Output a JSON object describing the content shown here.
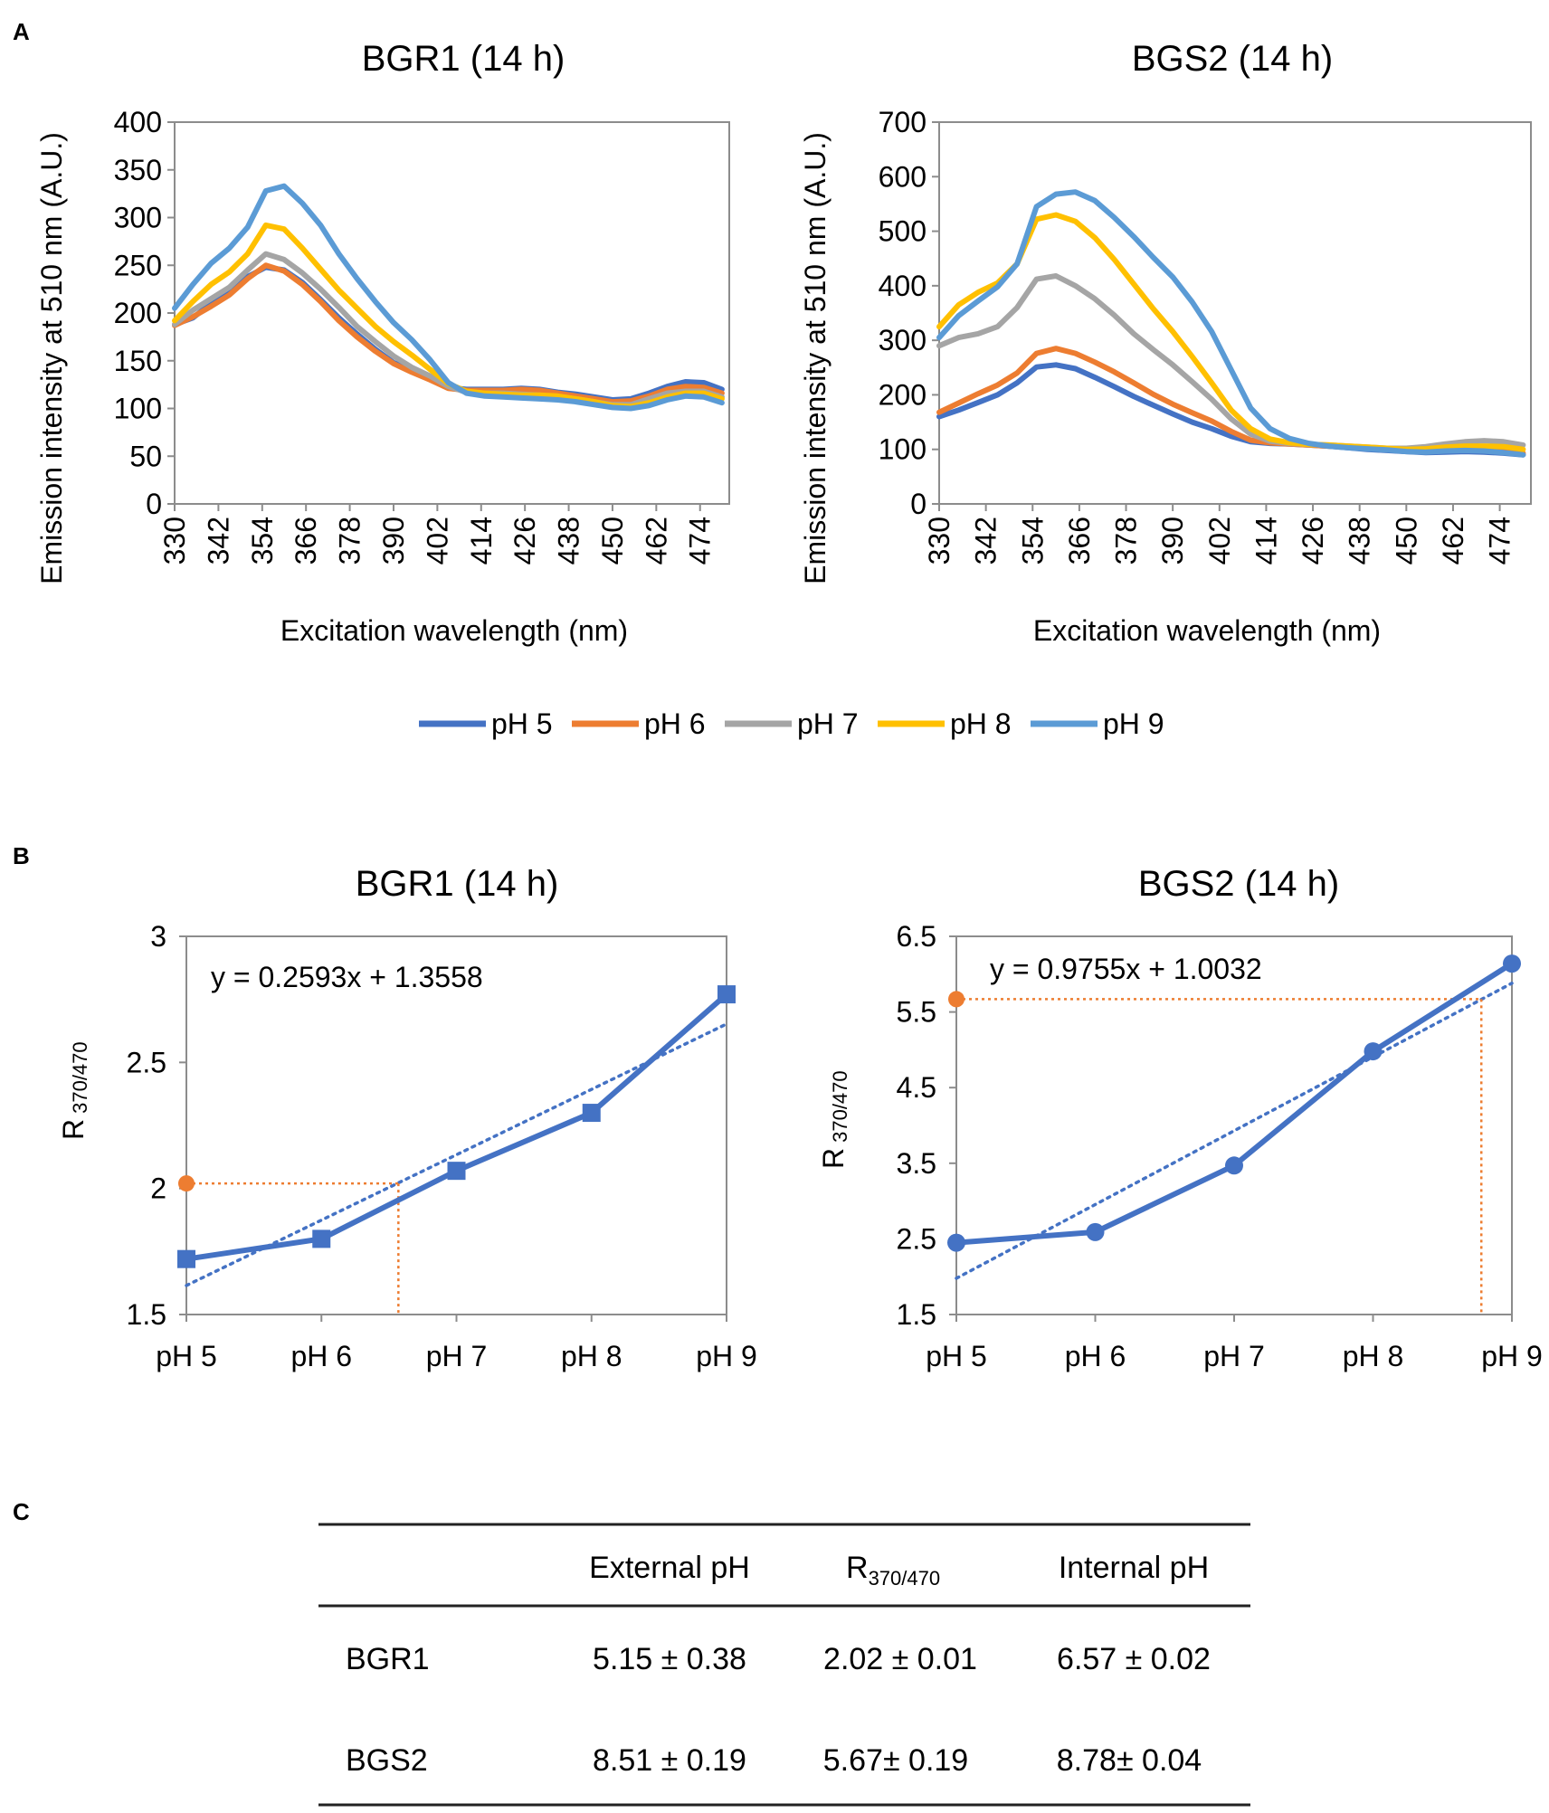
{
  "panels": {
    "a": "A",
    "b": "B",
    "c": "C"
  },
  "legend": [
    {
      "label": "pH 5",
      "color": "#4472C4"
    },
    {
      "label": "pH 6",
      "color": "#ED7D31"
    },
    {
      "label": "pH 7",
      "color": "#A5A5A5"
    },
    {
      "label": "pH 8",
      "color": "#FFC000"
    },
    {
      "label": "pH 9",
      "color": "#5B9BD5"
    }
  ],
  "chart_data": [
    {
      "id": "a1",
      "type": "line",
      "title": "BGR1 (14 h)",
      "xlabel": "Excitation wavelength (nm)",
      "ylabel": "Emission intensity at 510 nm (A.U.)",
      "xlim": [
        330,
        482
      ],
      "ylim": [
        0,
        400
      ],
      "ystep": 50,
      "xticks": [
        "330",
        "342",
        "354",
        "366",
        "378",
        "390",
        "402",
        "414",
        "426",
        "438",
        "450",
        "462",
        "474"
      ],
      "x": [
        330,
        335,
        340,
        345,
        350,
        355,
        360,
        365,
        370,
        375,
        380,
        385,
        390,
        395,
        400,
        405,
        410,
        415,
        420,
        425,
        430,
        435,
        440,
        445,
        450,
        455,
        460,
        465,
        470,
        475,
        480
      ],
      "series": [
        {
          "name": "pH 5",
          "values": [
            188,
            195,
            210,
            222,
            238,
            248,
            245,
            232,
            214,
            195,
            178,
            162,
            148,
            140,
            132,
            122,
            120,
            120,
            120,
            121,
            120,
            117,
            115,
            112,
            109,
            110,
            116,
            123,
            128,
            127,
            120
          ]
        },
        {
          "name": "pH 6",
          "values": [
            187,
            196,
            207,
            219,
            236,
            250,
            244,
            230,
            212,
            192,
            175,
            160,
            147,
            138,
            130,
            121,
            119,
            119,
            119,
            120,
            119,
            116,
            113,
            110,
            107,
            108,
            113,
            120,
            123,
            122,
            116
          ]
        },
        {
          "name": "pH 7",
          "values": [
            188,
            203,
            215,
            227,
            245,
            262,
            256,
            242,
            225,
            206,
            186,
            170,
            155,
            143,
            134,
            123,
            117,
            116,
            116,
            115,
            114,
            112,
            110,
            107,
            104,
            104,
            110,
            116,
            118,
            118,
            112
          ]
        },
        {
          "name": "pH 8",
          "values": [
            192,
            212,
            230,
            243,
            262,
            292,
            288,
            268,
            246,
            224,
            205,
            186,
            170,
            156,
            141,
            126,
            118,
            116,
            115,
            114,
            114,
            113,
            110,
            107,
            103,
            102,
            106,
            112,
            116,
            116,
            110
          ]
        },
        {
          "name": "pH 9",
          "values": [
            205,
            230,
            252,
            268,
            290,
            328,
            333,
            315,
            292,
            262,
            236,
            212,
            190,
            172,
            151,
            127,
            116,
            113,
            112,
            111,
            110,
            109,
            107,
            104,
            101,
            100,
            103,
            109,
            113,
            112,
            106
          ]
        }
      ]
    },
    {
      "id": "a2",
      "type": "line",
      "title": "BGS2 (14 h)",
      "xlabel": "Excitation wavelength (nm)",
      "ylabel": "Emission intensity at 510 nm (A.U.)",
      "xlim": [
        330,
        482
      ],
      "ylim": [
        0,
        700
      ],
      "ystep": 100,
      "xticks": [
        "330",
        "342",
        "354",
        "366",
        "378",
        "390",
        "402",
        "414",
        "426",
        "438",
        "450",
        "462",
        "474"
      ],
      "x": [
        330,
        335,
        340,
        345,
        350,
        355,
        360,
        365,
        370,
        375,
        380,
        385,
        390,
        395,
        400,
        405,
        410,
        415,
        420,
        425,
        430,
        435,
        440,
        445,
        450,
        455,
        460,
        465,
        470,
        475,
        480
      ],
      "series": [
        {
          "name": "pH 5",
          "values": [
            160,
            172,
            186,
            200,
            222,
            251,
            255,
            248,
            232,
            215,
            197,
            181,
            165,
            150,
            138,
            124,
            114,
            111,
            110,
            108,
            106,
            103,
            100,
            98,
            96,
            94,
            95,
            96,
            95,
            93,
            90
          ]
        },
        {
          "name": "pH 6",
          "values": [
            168,
            185,
            202,
            218,
            240,
            276,
            285,
            276,
            260,
            242,
            222,
            201,
            183,
            167,
            152,
            133,
            117,
            112,
            110,
            108,
            106,
            104,
            102,
            100,
            98,
            97,
            98,
            99,
            98,
            96,
            93
          ]
        },
        {
          "name": "pH 7",
          "values": [
            290,
            305,
            312,
            325,
            360,
            412,
            418,
            400,
            376,
            346,
            312,
            283,
            255,
            224,
            192,
            156,
            128,
            115,
            111,
            109,
            108,
            106,
            104,
            102,
            102,
            105,
            110,
            114,
            116,
            114,
            108
          ]
        },
        {
          "name": "pH 8",
          "values": [
            325,
            365,
            388,
            405,
            440,
            522,
            530,
            518,
            488,
            448,
            403,
            358,
            316,
            270,
            222,
            172,
            138,
            119,
            112,
            109,
            108,
            106,
            104,
            102,
            100,
            101,
            104,
            106,
            106,
            105,
            100
          ]
        },
        {
          "name": "pH 9",
          "values": [
            305,
            345,
            372,
            398,
            440,
            545,
            568,
            572,
            556,
            525,
            490,
            452,
            416,
            370,
            316,
            246,
            176,
            138,
            120,
            111,
            106,
            103,
            101,
            99,
            96,
            95,
            97,
            98,
            97,
            94,
            90
          ]
        }
      ]
    },
    {
      "id": "b1",
      "type": "line",
      "title": "BGR1 (14 h)",
      "ylabel_main": "R",
      "ylabel_sub": "370/470",
      "ylim": [
        1.5,
        3
      ],
      "yticks": [
        "1.5",
        "2",
        "2.5",
        "3"
      ],
      "categories": [
        "pH 5",
        "pH 6",
        "pH 7",
        "pH 8",
        "pH 9"
      ],
      "values": [
        1.72,
        1.8,
        2.07,
        2.3,
        2.77
      ],
      "trendline": {
        "equation": "y = 0.2593x + 1.3558",
        "slope": 0.2593,
        "intercept": 1.3558
      },
      "marker": "square",
      "reference": {
        "r": 2.02,
        "pH": 6.57
      }
    },
    {
      "id": "b2",
      "type": "line",
      "title": "BGS2 (14 h)",
      "ylabel_main": "R",
      "ylabel_sub": "370/470",
      "ylim": [
        1.5,
        6.5
      ],
      "yticks": [
        "1.5",
        "2.5",
        "3.5",
        "4.5",
        "5.5",
        "6.5"
      ],
      "categories": [
        "pH 5",
        "pH 6",
        "pH 7",
        "pH 8",
        "pH 9"
      ],
      "values": [
        2.45,
        2.59,
        3.47,
        4.98,
        6.14
      ],
      "trendline": {
        "equation": "y = 0.9755x + 1.0032",
        "slope": 0.9755,
        "intercept": 1.0032
      },
      "marker": "circle",
      "reference": {
        "r": 5.67,
        "pH": 8.78
      }
    }
  ],
  "table": {
    "headers": {
      "col0": "",
      "col1": "External pH",
      "col2_main": "R",
      "col2_sub": "370/470",
      "col3": "Internal pH"
    },
    "rows": [
      {
        "name": "BGR1",
        "external": "5.15 ± 0.38",
        "r": "2.02 ± 0.01",
        "internal": "6.57 ± 0.02"
      },
      {
        "name": "BGS2",
        "external": "8.51 ± 0.19",
        "r": "5.67± 0.19",
        "internal": "8.78± 0.04"
      }
    ]
  }
}
